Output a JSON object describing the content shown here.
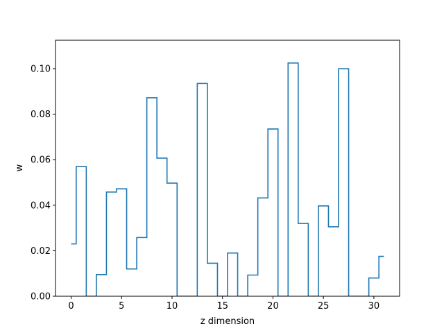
{
  "chart_data": {
    "type": "line",
    "drawstyle": "steps-mid",
    "title": "",
    "xlabel": "z dimension",
    "ylabel": "w",
    "xlim": [
      -1.55,
      32.55
    ],
    "ylim": [
      0,
      0.1125
    ],
    "x_ticks": [
      0,
      5,
      10,
      15,
      20,
      25,
      30
    ],
    "y_ticks": [
      0.0,
      0.02,
      0.04,
      0.06,
      0.08,
      0.1
    ],
    "x_tick_labels": [
      "0",
      "5",
      "10",
      "15",
      "20",
      "25",
      "30"
    ],
    "y_tick_labels": [
      "0.00",
      "0.02",
      "0.04",
      "0.06",
      "0.08",
      "0.10"
    ],
    "grid": false,
    "line_color": "#1f77b4",
    "x": [
      0,
      1,
      2,
      3,
      4,
      5,
      6,
      7,
      8,
      9,
      10,
      11,
      12,
      13,
      14,
      15,
      16,
      17,
      18,
      19,
      20,
      21,
      22,
      23,
      24,
      25,
      26,
      27,
      28,
      29,
      30,
      31
    ],
    "values": [
      0.023,
      0.057,
      0,
      0.0095,
      0.0458,
      0.0472,
      0.012,
      0.0258,
      0.0872,
      0.0607,
      0.0497,
      0,
      0,
      0.0935,
      0.0145,
      0,
      0.019,
      0,
      0.0093,
      0.0432,
      0.0735,
      0,
      0.1025,
      0.032,
      0,
      0.0397,
      0.0305,
      0.1,
      0,
      0,
      0.008,
      0.0175
    ]
  }
}
